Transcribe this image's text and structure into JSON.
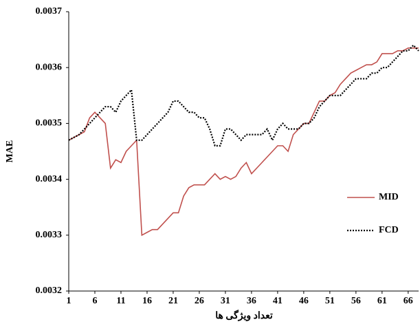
{
  "chart_data": {
    "type": "line",
    "xlabel": "تعداد ویژگی ها",
    "ylabel": "MAE",
    "x": [
      1,
      2,
      3,
      4,
      5,
      6,
      7,
      8,
      9,
      10,
      11,
      12,
      13,
      14,
      15,
      16,
      17,
      18,
      19,
      20,
      21,
      22,
      23,
      24,
      25,
      26,
      27,
      28,
      29,
      30,
      31,
      32,
      33,
      34,
      35,
      36,
      37,
      38,
      39,
      40,
      41,
      42,
      43,
      44,
      45,
      46,
      47,
      48,
      49,
      50,
      51,
      52,
      53,
      54,
      55,
      56,
      57,
      58,
      59,
      60,
      61,
      62,
      63,
      64,
      65,
      66,
      67,
      68
    ],
    "series": [
      {
        "name": "MID",
        "color": "#c0504d",
        "dash": "solid",
        "values": [
          0.00347,
          0.003475,
          0.00348,
          0.003485,
          0.00351,
          0.00352,
          0.00351,
          0.0035,
          0.00342,
          0.003435,
          0.00343,
          0.00345,
          0.00346,
          0.00347,
          0.0033,
          0.003305,
          0.00331,
          0.00331,
          0.00332,
          0.00333,
          0.00334,
          0.00334,
          0.00337,
          0.003385,
          0.00339,
          0.00339,
          0.00339,
          0.0034,
          0.00341,
          0.0034,
          0.003405,
          0.0034,
          0.003405,
          0.00342,
          0.00343,
          0.00341,
          0.00342,
          0.00343,
          0.00344,
          0.00345,
          0.00346,
          0.00346,
          0.00345,
          0.00348,
          0.00349,
          0.0035,
          0.0035,
          0.00352,
          0.00354,
          0.00354,
          0.00355,
          0.003555,
          0.00357,
          0.00358,
          0.00359,
          0.003595,
          0.0036,
          0.003605,
          0.003605,
          0.00361,
          0.003625,
          0.003625,
          0.003625,
          0.00363,
          0.00363,
          0.003635,
          0.003635,
          0.003635
        ]
      },
      {
        "name": "FCD",
        "color": "#000000",
        "dash": "dotted",
        "values": [
          0.00347,
          0.003475,
          0.00348,
          0.00349,
          0.0035,
          0.00351,
          0.00352,
          0.00353,
          0.00353,
          0.00352,
          0.00354,
          0.00355,
          0.00356,
          0.00347,
          0.00347,
          0.00348,
          0.00349,
          0.0035,
          0.00351,
          0.00352,
          0.00354,
          0.00354,
          0.00353,
          0.00352,
          0.00352,
          0.00351,
          0.00351,
          0.00349,
          0.00346,
          0.00346,
          0.00349,
          0.00349,
          0.00348,
          0.00347,
          0.00348,
          0.00348,
          0.00348,
          0.00348,
          0.00349,
          0.00347,
          0.00349,
          0.0035,
          0.00349,
          0.00349,
          0.00349,
          0.0035,
          0.0035,
          0.00351,
          0.00353,
          0.00354,
          0.00355,
          0.00355,
          0.00355,
          0.00356,
          0.00357,
          0.00358,
          0.00358,
          0.00358,
          0.00359,
          0.00359,
          0.0036,
          0.0036,
          0.00361,
          0.00362,
          0.00363,
          0.00363,
          0.00364,
          0.00363
        ]
      }
    ],
    "xlim": [
      1,
      68
    ],
    "xticks": [
      1,
      6,
      11,
      16,
      21,
      26,
      31,
      36,
      41,
      46,
      51,
      56,
      61,
      66
    ],
    "ylim": [
      0.0032,
      0.0037
    ],
    "yticks": [
      0.0032,
      0.0033,
      0.0034,
      0.0035,
      0.0036,
      0.0037
    ],
    "grid": false,
    "legend": "right"
  }
}
